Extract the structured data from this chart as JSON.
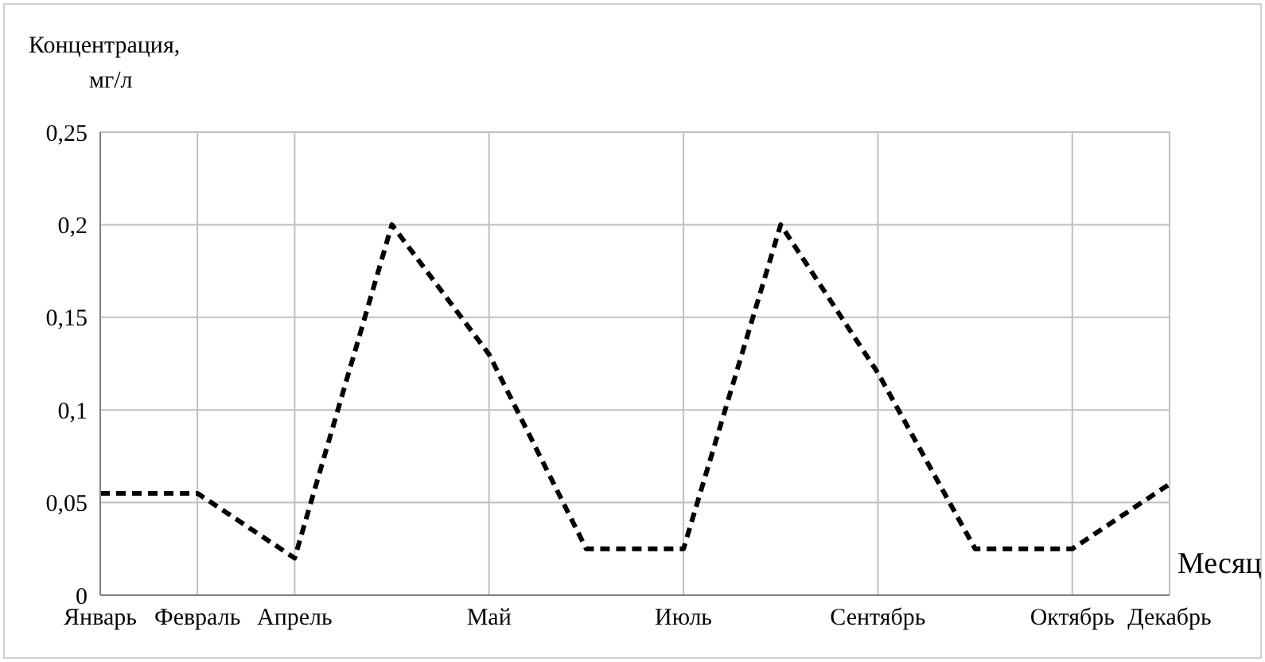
{
  "chart_data": {
    "type": "line",
    "xlabel": "Месяц",
    "ylabel": "Концентрация, мг/л",
    "categories": [
      "Январь",
      "Февраль",
      "Апрель",
      null,
      "Май",
      null,
      "Июль",
      null,
      "Сентябрь",
      null,
      "Октябрь",
      "Декабрь"
    ],
    "series": [
      {
        "color": "#000000",
        "values": [
          0.055,
          0.055,
          0.02,
          0.2,
          0.13,
          0.025,
          0.025,
          0.2,
          0.12,
          0.025,
          0.025,
          0.06
        ]
      }
    ],
    "ylim": [
      0,
      0.25
    ],
    "yticks": [
      0,
      {
        "value": 0.05,
        "label": "0,05"
      },
      {
        "value": 0.1,
        "label": "0,1"
      },
      {
        "value": 0.15,
        "label": "0,15"
      },
      {
        "value": 0.2,
        "label": "0,2"
      },
      {
        "value": 0.25,
        "label": "0,25"
      }
    ],
    "grid": true,
    "line_style": "dashed",
    "marker": "none"
  }
}
